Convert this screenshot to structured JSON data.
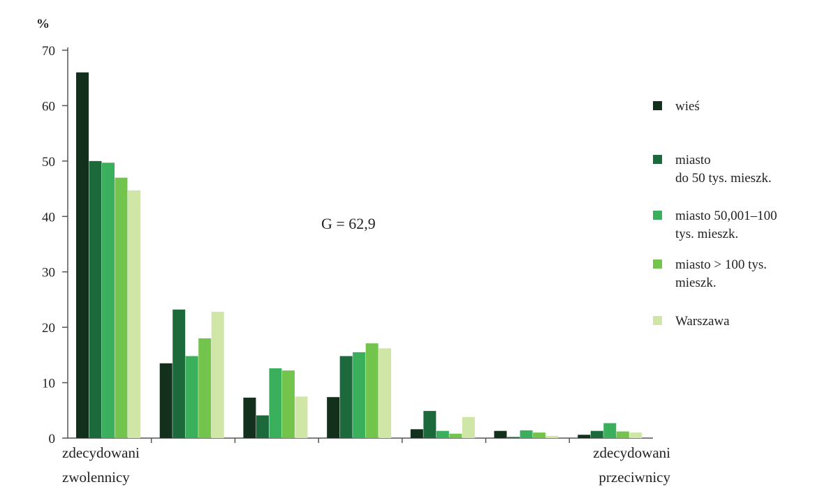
{
  "chart_data": {
    "type": "bar",
    "ylabel": "%",
    "ylim": [
      0,
      70
    ],
    "yticks": [
      0,
      10,
      20,
      30,
      40,
      50,
      60,
      70
    ],
    "categories": [
      "1",
      "2",
      "3",
      "4",
      "5",
      "6",
      "7"
    ],
    "category_labels": [
      {
        "lines": [
          "zdecydowani",
          "zwolennicy"
        ]
      },
      {
        "lines": []
      },
      {
        "lines": []
      },
      {
        "lines": []
      },
      {
        "lines": []
      },
      {
        "lines": []
      },
      {
        "lines": [
          "zdecydowani",
          "przeciwnicy"
        ]
      }
    ],
    "series": [
      {
        "name": "wieś",
        "color": "#13301c",
        "values": [
          66,
          13.5,
          7.3,
          7.4,
          1.6,
          1.3,
          0.6
        ]
      },
      {
        "name": "miasto\ndo 50 tys. mieszk.",
        "color": "#1c6a3c",
        "values": [
          50,
          23.2,
          4.1,
          14.8,
          4.9,
          0.2,
          1.3
        ]
      },
      {
        "name": "miasto 50,001–100\ntys. mieszk.",
        "color": "#3bb05c",
        "values": [
          49.7,
          14.8,
          12.6,
          15.5,
          1.3,
          1.4,
          2.7
        ]
      },
      {
        "name": "miasto > 100 tys.\nmieszk.",
        "color": "#72c44c",
        "values": [
          47,
          18,
          12.2,
          17.1,
          0.8,
          1.0,
          1.2
        ]
      },
      {
        "name": "Warszawa",
        "color": "#cfe6a6",
        "values": [
          44.7,
          22.8,
          7.5,
          16.2,
          3.8,
          0.4,
          1.0
        ]
      }
    ],
    "annotation": "G = 62,9",
    "legend_position": "right",
    "grid": false
  }
}
